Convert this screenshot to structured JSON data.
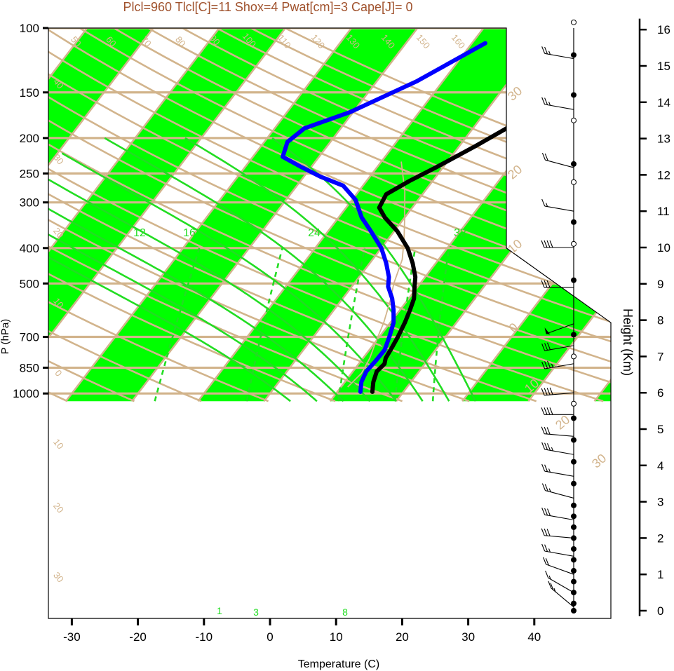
{
  "title": "Plcl=960 Tlcl[C]=11 Shox=4 Pwat[cm]=3 Cape[J]= 0",
  "colors": {
    "title": "#a0522d",
    "isotherm_band": "#00ff00",
    "grid_line": "#d2b48c",
    "moist_adiabat": "#22dd22",
    "mixing_ratio": "#22dd22",
    "temperature": "#000000",
    "dewpoint": "#0000ff",
    "parcel": "#d2b48c"
  },
  "chart_data": {
    "type": "line",
    "title": "Plcl=960 Tlcl[C]=11 Shox=4 Pwat[cm]=3 Cape[J]= 0",
    "xlabel": "Temperature (C)",
    "ylabel": "P (hPa)",
    "y2label": "Height (Km)",
    "x_ticks": [
      -30,
      -20,
      -10,
      0,
      10,
      20,
      30,
      40
    ],
    "p_ticks": [
      100,
      150,
      200,
      250,
      300,
      400,
      500,
      700,
      850,
      1000
    ],
    "height_ticks": [
      0,
      1,
      2,
      3,
      4,
      5,
      6,
      7,
      8,
      9,
      10,
      11,
      12,
      13,
      14,
      15,
      16
    ],
    "xlim": [
      -34,
      48
    ],
    "plim": [
      100,
      1050
    ],
    "theta_labels": [
      "50",
      "60",
      "70",
      "80",
      "90",
      "100",
      "110",
      "120",
      "130",
      "140",
      "150",
      "160"
    ],
    "isotherm_labels_left": [
      "40",
      "30",
      "20",
      "10",
      "0",
      "10",
      "20",
      "30"
    ],
    "isotherm_labels_right": [
      "30",
      "20",
      "10",
      "0",
      "10",
      "20",
      "30"
    ],
    "moist_labels": [
      "12",
      "16",
      "24",
      "32"
    ],
    "mixing_labels": [
      "1",
      "3",
      "8"
    ],
    "series": [
      {
        "name": "Temperature",
        "points": [
          [
            17.3,
            110
          ],
          [
            14.5,
            125
          ],
          [
            11.5,
            140
          ],
          [
            8.5,
            160
          ],
          [
            5.5,
            185
          ],
          [
            2.5,
            210
          ],
          [
            -1,
            240
          ],
          [
            -3.5,
            262
          ],
          [
            -5.5,
            285
          ],
          [
            -5,
            310
          ],
          [
            -3,
            330
          ],
          [
            0.5,
            360
          ],
          [
            4,
            400
          ],
          [
            6.5,
            440
          ],
          [
            8.5,
            480
          ],
          [
            9.5,
            510
          ],
          [
            10.8,
            550
          ],
          [
            11.5,
            590
          ],
          [
            12.2,
            640
          ],
          [
            12.8,
            700
          ],
          [
            13.2,
            760
          ],
          [
            13.4,
            800
          ],
          [
            13.9,
            830
          ],
          [
            13.6,
            870
          ],
          [
            14.3,
            930
          ],
          [
            15.3,
            990
          ]
        ]
      },
      {
        "name": "Dewpoint",
        "points": [
          [
            -8,
            110
          ],
          [
            -14,
            140
          ],
          [
            -20.5,
            170
          ],
          [
            -25.5,
            188
          ],
          [
            -26.5,
            205
          ],
          [
            -25.5,
            225
          ],
          [
            -21.5,
            240
          ],
          [
            -17.5,
            255
          ],
          [
            -13,
            270
          ],
          [
            -9.5,
            295
          ],
          [
            -6.5,
            330
          ],
          [
            -3.5,
            360
          ],
          [
            0,
            400
          ],
          [
            2.5,
            440
          ],
          [
            4.5,
            480
          ],
          [
            5.5,
            510
          ],
          [
            7.5,
            550
          ],
          [
            9,
            590
          ],
          [
            10.5,
            640
          ],
          [
            11.5,
            700
          ],
          [
            12.3,
            760
          ],
          [
            12.2,
            820
          ],
          [
            12,
            870
          ],
          [
            12.5,
            930
          ],
          [
            13.5,
            990
          ]
        ]
      }
    ],
    "parcel": [
      [
        -7,
        232
      ],
      [
        -3,
        280
      ],
      [
        0,
        330
      ],
      [
        2.5,
        380
      ],
      [
        4.5,
        430
      ],
      [
        6,
        500
      ],
      [
        7.5,
        560
      ],
      [
        9,
        640
      ],
      [
        10,
        720
      ],
      [
        11,
        800
      ],
      [
        11.5,
        880
      ],
      [
        11,
        960
      ]
    ],
    "wind_barbs": [
      {
        "h": 15.2,
        "speed": 25,
        "dir": 280
      },
      {
        "h": 13.8,
        "speed": 25,
        "dir": 280
      },
      {
        "h": 12.2,
        "speed": 20,
        "dir": 285
      },
      {
        "h": 11.0,
        "speed": 15,
        "dir": 280
      },
      {
        "h": 10.0,
        "speed": 40,
        "dir": 270
      },
      {
        "h": 8.9,
        "speed": 30,
        "dir": 270
      },
      {
        "h": 7.9,
        "speed": 50,
        "dir": 250
      },
      {
        "h": 7.3,
        "speed": 30,
        "dir": 260
      },
      {
        "h": 6.8,
        "speed": 35,
        "dir": 260
      },
      {
        "h": 6.0,
        "speed": 40,
        "dir": 265
      },
      {
        "h": 5.4,
        "speed": 40,
        "dir": 270
      },
      {
        "h": 4.8,
        "speed": 30,
        "dir": 275
      },
      {
        "h": 4.3,
        "speed": 35,
        "dir": 280
      },
      {
        "h": 3.7,
        "speed": 25,
        "dir": 280
      },
      {
        "h": 3.1,
        "speed": 25,
        "dir": 285
      },
      {
        "h": 2.5,
        "speed": 30,
        "dir": 280
      },
      {
        "h": 2.0,
        "speed": 30,
        "dir": 275
      },
      {
        "h": 1.5,
        "speed": 25,
        "dir": 280
      },
      {
        "h": 1.0,
        "speed": 20,
        "dir": 290
      },
      {
        "h": 0.5,
        "speed": 15,
        "dir": 300
      },
      {
        "h": 0.1,
        "speed": 25,
        "dir": 310
      }
    ],
    "marker_heights_filled": [
      15.3,
      14.2,
      12.3,
      10.7,
      9.1,
      7.6,
      5.3,
      4.7,
      4.1,
      3.5,
      2.9,
      2.6,
      2.3,
      2.0,
      1.7,
      1.4,
      1.1,
      0.8,
      0.5,
      0.2,
      0.0
    ],
    "marker_heights_open": [
      16.2,
      13.5,
      11.8,
      10.1,
      7.0,
      5.7
    ]
  }
}
